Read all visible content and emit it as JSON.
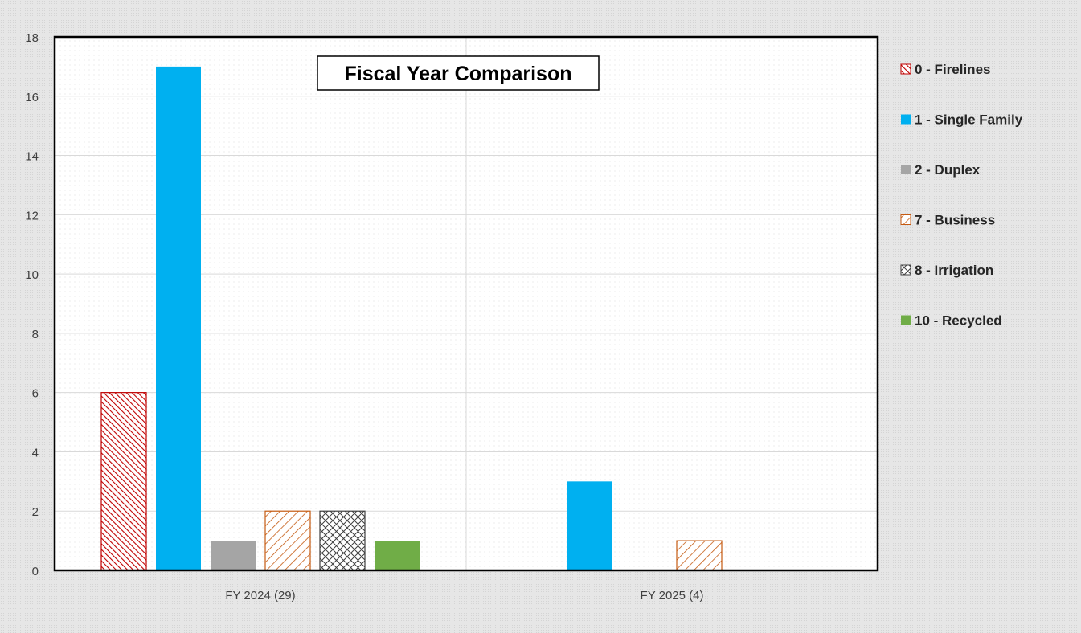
{
  "chart_data": {
    "type": "bar",
    "title": "Fiscal Year Comparison",
    "categories": [
      "FY 2024 (29)",
      "FY 2025 (4)"
    ],
    "ylim": [
      0,
      18
    ],
    "yticks": [
      0,
      2,
      4,
      6,
      8,
      10,
      12,
      14,
      16,
      18
    ],
    "grid": true,
    "legend_position": "right",
    "series": [
      {
        "name": "0 - Firelines",
        "values": [
          6,
          0
        ],
        "color": "#c00000",
        "pattern": "diagonal-hatch"
      },
      {
        "name": "1 - Single Family",
        "values": [
          17,
          3
        ],
        "color": "#00b0f0",
        "pattern": "solid"
      },
      {
        "name": "2 - Duplex",
        "values": [
          1,
          0
        ],
        "color": "#a5a5a5",
        "pattern": "solid"
      },
      {
        "name": "7 - Business",
        "values": [
          2,
          1
        ],
        "color": "#c55a11",
        "pattern": "wide-diagonal-hatch"
      },
      {
        "name": "8 - Irrigation",
        "values": [
          2,
          0
        ],
        "color": "#404040",
        "pattern": "crosshatch"
      },
      {
        "name": "10 - Recycled",
        "values": [
          1,
          0
        ],
        "color": "#70ad47",
        "pattern": "solid"
      }
    ]
  }
}
